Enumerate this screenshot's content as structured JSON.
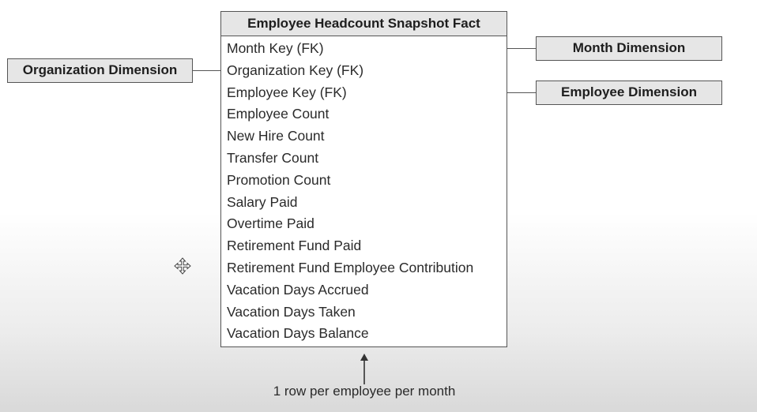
{
  "fact_table": {
    "title": "Employee Headcount Snapshot Fact",
    "attributes": [
      "Month Key (FK)",
      "Organization Key (FK)",
      "Employee Key (FK)",
      "Employee Count",
      "New Hire Count",
      "Transfer Count",
      "Promotion Count",
      "Salary Paid",
      "Overtime Paid",
      "Retirement Fund Paid",
      "Retirement Fund Employee Contribution",
      "Vacation Days Accrued",
      "Vacation Days Taken",
      "Vacation Days Balance"
    ]
  },
  "dimensions": {
    "organization": "Organization Dimension",
    "month": "Month Dimension",
    "employee": "Employee Dimension"
  },
  "grain_note": "1 row per employee per month",
  "cursor": {
    "icon": "move-cursor-icon"
  },
  "colors": {
    "box_fill": "#e6e6e6",
    "border": "#555555",
    "text": "#2a2a2a"
  }
}
